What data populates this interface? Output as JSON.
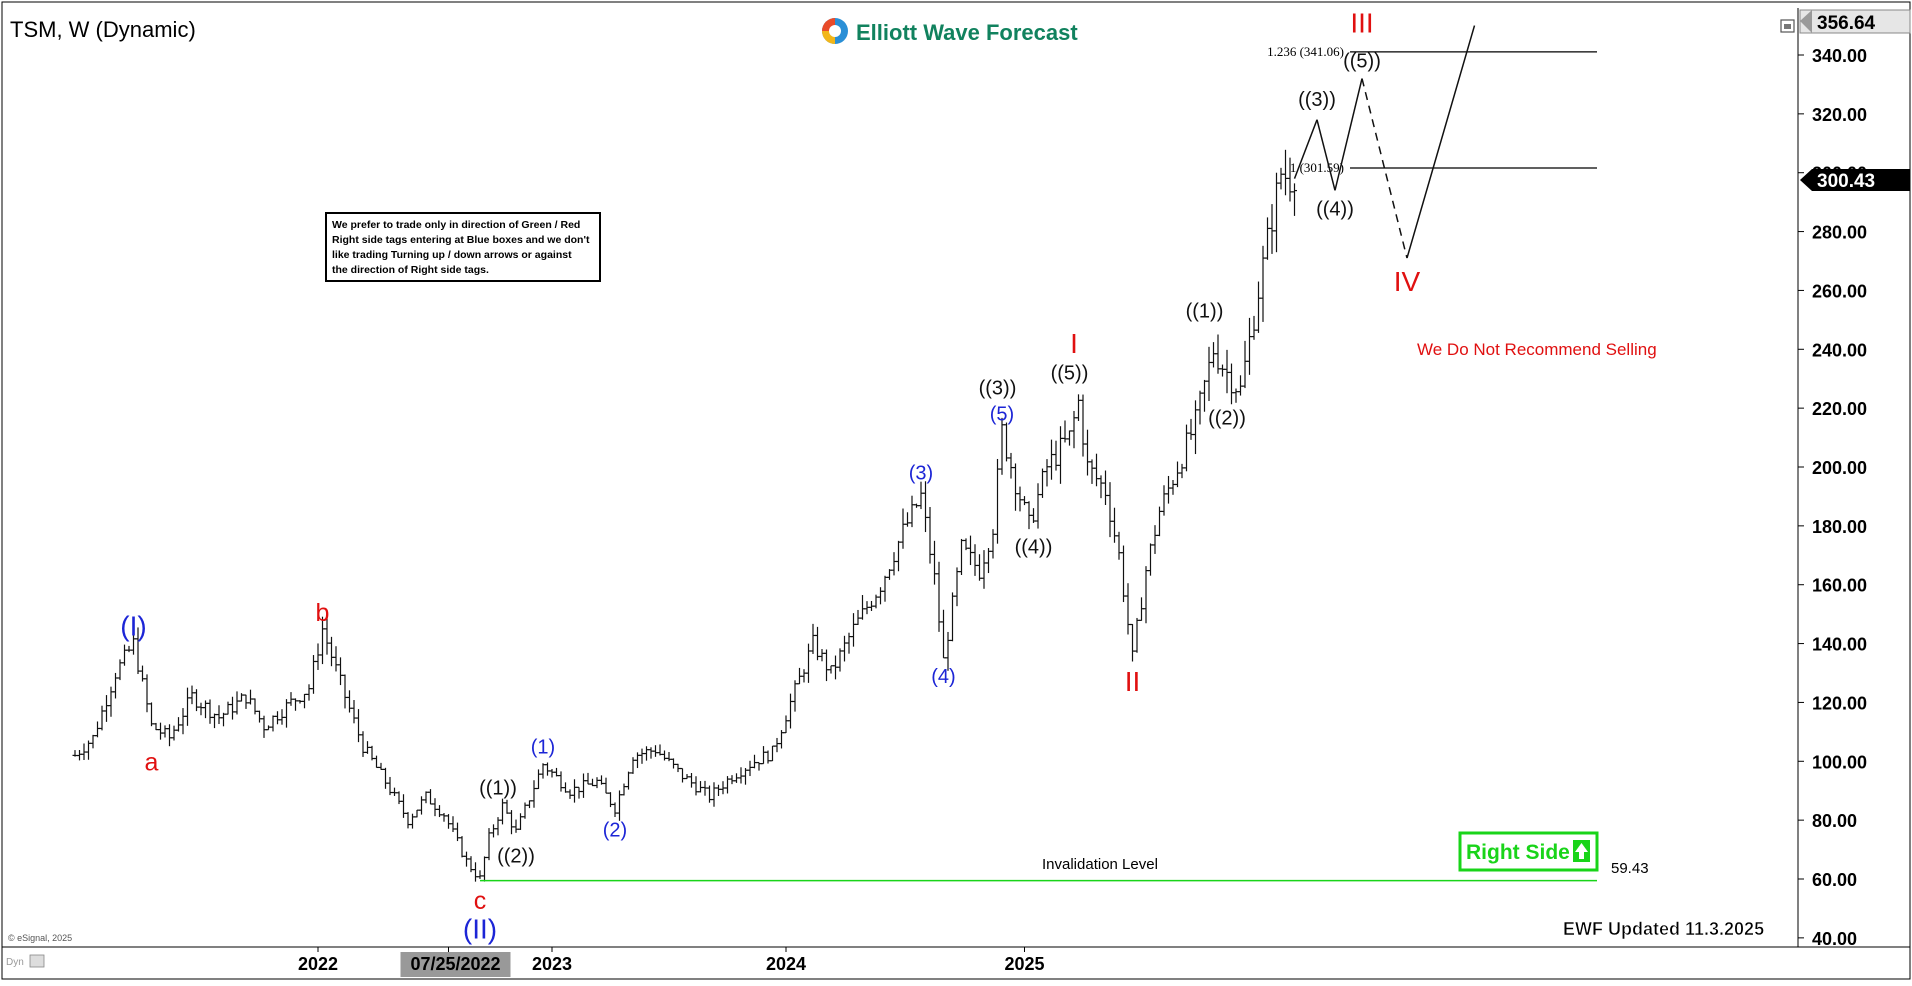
{
  "header": {
    "symbol_title": "TSM, W (Dynamic)",
    "brand": "Elliott Wave Forecast",
    "updated": "EWF Updated 11.3.2025",
    "copyright": "© eSignal, 2025",
    "corner_tag": "Dyn"
  },
  "note_box": [
    "We prefer to trade only in direction of Green / Red",
    "Right side tags entering at Blue boxes and we don't",
    "like trading Turning up / down arrows or against",
    "the direction of Right side tags."
  ],
  "right_side_tag": "Right Side",
  "recommendation": "We Do Not Recommend Selling",
  "invalidation": {
    "label": "Invalidation Level",
    "value": "59.43"
  },
  "price_box": {
    "high": "356.64",
    "last": "300.43"
  },
  "fib_levels": [
    {
      "label": "1.236 (341.06)",
      "price": 341.06
    },
    {
      "label": "1 (301.59)",
      "price": 301.59
    }
  ],
  "x_axis": {
    "ticks": [
      {
        "label": "2022",
        "week": 0
      },
      {
        "label": "07/25/2022",
        "week": 29,
        "highlight": true
      },
      {
        "label": "2023",
        "week": 52
      },
      {
        "label": "2024",
        "week": 104
      },
      {
        "label": "2025",
        "week": 157
      }
    ]
  },
  "colors": {
    "wave_red": "#e01010",
    "wave_blue": "#1c25d6",
    "wave_black": "#111111",
    "invalidation_green": "#19d419",
    "right_side_green": "#19d419",
    "last_price_box": "#000000"
  },
  "chart_data": {
    "type": "bar",
    "title": "TSM, W (Dynamic)",
    "xlabel": "",
    "ylabel": "",
    "ylim": [
      36,
      358
    ],
    "y_ticks": [
      40,
      60,
      80,
      100,
      120,
      140,
      160,
      180,
      200,
      220,
      240,
      260,
      280,
      300,
      320,
      340
    ],
    "y_tick_labels": [
      "40.00",
      "60.00",
      "80.00",
      "100.00",
      "120.00",
      "140.00",
      "160.00",
      "180.00",
      "200.00",
      "220.00",
      "240.00",
      "260.00",
      "280.00",
      "300.00",
      "320.00",
      "340.00"
    ],
    "grid": false,
    "series": [
      {
        "type": "ohlc",
        "points": [
          {
            "week": -54,
            "price": 102
          },
          {
            "week": -50,
            "price": 108
          },
          {
            "week": -45,
            "price": 130
          },
          {
            "week": -41,
            "price": 140
          },
          {
            "week": -37,
            "price": 112
          },
          {
            "week": -33,
            "price": 108
          },
          {
            "week": -28,
            "price": 122
          },
          {
            "week": -22,
            "price": 115
          },
          {
            "week": -16,
            "price": 122
          },
          {
            "week": -12,
            "price": 112
          },
          {
            "week": -6,
            "price": 120
          },
          {
            "week": -2,
            "price": 125
          },
          {
            "week": 1,
            "price": 145
          },
          {
            "week": 6,
            "price": 122
          },
          {
            "week": 10,
            "price": 105
          },
          {
            "week": 15,
            "price": 93
          },
          {
            "week": 20,
            "price": 80
          },
          {
            "week": 24,
            "price": 88
          },
          {
            "week": 28,
            "price": 82
          },
          {
            "week": 33,
            "price": 66
          },
          {
            "week": 36,
            "price": 60
          },
          {
            "week": 38,
            "price": 74
          },
          {
            "week": 41,
            "price": 85
          },
          {
            "week": 44,
            "price": 76
          },
          {
            "week": 50,
            "price": 99
          },
          {
            "week": 56,
            "price": 90
          },
          {
            "week": 62,
            "price": 93
          },
          {
            "week": 66,
            "price": 84
          },
          {
            "week": 70,
            "price": 102
          },
          {
            "week": 75,
            "price": 104
          },
          {
            "week": 81,
            "price": 95
          },
          {
            "week": 87,
            "price": 88
          },
          {
            "week": 92,
            "price": 95
          },
          {
            "week": 97,
            "price": 100
          },
          {
            "week": 101,
            "price": 103
          },
          {
            "week": 105,
            "price": 120
          },
          {
            "week": 110,
            "price": 140
          },
          {
            "week": 114,
            "price": 130
          },
          {
            "week": 119,
            "price": 145
          },
          {
            "week": 125,
            "price": 160
          },
          {
            "week": 130,
            "price": 178
          },
          {
            "week": 134,
            "price": 190
          },
          {
            "week": 137,
            "price": 162
          },
          {
            "week": 139,
            "price": 134
          },
          {
            "week": 143,
            "price": 172
          },
          {
            "week": 147,
            "price": 165
          },
          {
            "week": 150,
            "price": 180
          },
          {
            "week": 152,
            "price": 212
          },
          {
            "week": 155,
            "price": 195
          },
          {
            "week": 158,
            "price": 180
          },
          {
            "week": 162,
            "price": 200
          },
          {
            "week": 167,
            "price": 210
          },
          {
            "week": 169,
            "price": 222
          },
          {
            "week": 171,
            "price": 200
          },
          {
            "week": 175,
            "price": 192
          },
          {
            "week": 178,
            "price": 170
          },
          {
            "week": 181,
            "price": 135
          },
          {
            "week": 184,
            "price": 165
          },
          {
            "week": 187,
            "price": 185
          },
          {
            "week": 191,
            "price": 200
          },
          {
            "week": 195,
            "price": 215
          },
          {
            "week": 199,
            "price": 240
          },
          {
            "week": 202,
            "price": 232
          },
          {
            "week": 205,
            "price": 226
          },
          {
            "week": 209,
            "price": 260
          },
          {
            "week": 212,
            "price": 285
          },
          {
            "week": 214,
            "price": 300
          },
          {
            "week": 216,
            "price": 298
          },
          {
            "week": 217,
            "price": 300
          }
        ]
      },
      {
        "name": "projection",
        "points": [
          {
            "week": 217,
            "price": 298
          },
          {
            "week": 222,
            "price": 318
          },
          {
            "week": 226,
            "price": 294
          },
          {
            "week": 232,
            "price": 332
          },
          {
            "week": 242,
            "price": 271
          },
          {
            "week": 257,
            "price": 350
          }
        ]
      }
    ],
    "annotations": [
      {
        "text": "(I)",
        "week": -41,
        "price": 140,
        "color": "blue",
        "position": "above"
      },
      {
        "text": "a",
        "week": -37,
        "price": 106,
        "color": "red",
        "position": "below"
      },
      {
        "text": "b",
        "week": 1,
        "price": 145,
        "color": "red",
        "position": "above"
      },
      {
        "text": "c",
        "week": 36,
        "price": 59,
        "color": "red",
        "position": "below"
      },
      {
        "text": "(II)",
        "week": 36,
        "price": 50,
        "color": "blue",
        "position": "below"
      },
      {
        "text": "((1))",
        "week": 40,
        "price": 86,
        "color": "black",
        "position": "above"
      },
      {
        "text": "((2))",
        "week": 44,
        "price": 73,
        "color": "black",
        "position": "below"
      },
      {
        "text": "(1)",
        "week": 50,
        "price": 100,
        "color": "blue",
        "position": "above"
      },
      {
        "text": "(2)",
        "week": 66,
        "price": 82,
        "color": "blue",
        "position": "below"
      },
      {
        "text": "(3)",
        "week": 134,
        "price": 193,
        "color": "blue",
        "position": "above"
      },
      {
        "text": "(4)",
        "week": 139,
        "price": 134,
        "color": "blue",
        "position": "below"
      },
      {
        "text": "(5)",
        "week": 152,
        "price": 213,
        "color": "blue",
        "position": "above"
      },
      {
        "text": "((3))",
        "week": 151,
        "price": 222,
        "color": "black",
        "position": "above"
      },
      {
        "text": "((4))",
        "week": 159,
        "price": 178,
        "color": "black",
        "position": "below"
      },
      {
        "text": "((5))",
        "week": 167,
        "price": 227,
        "color": "black",
        "position": "above"
      },
      {
        "text": "I",
        "week": 168,
        "price": 236,
        "color": "red",
        "position": "above"
      },
      {
        "text": "II",
        "week": 181,
        "price": 134,
        "color": "red",
        "position": "below"
      },
      {
        "text": "((1))",
        "week": 197,
        "price": 248,
        "color": "black",
        "position": "above"
      },
      {
        "text": "((2))",
        "week": 202,
        "price": 222,
        "color": "black",
        "position": "below"
      },
      {
        "text": "((3))",
        "week": 222,
        "price": 320,
        "color": "black",
        "position": "above"
      },
      {
        "text": "((4))",
        "week": 226,
        "price": 293,
        "color": "black",
        "position": "below"
      },
      {
        "text": "((5))",
        "week": 232,
        "price": 333,
        "color": "black",
        "position": "above"
      },
      {
        "text": "III",
        "week": 232,
        "price": 345,
        "color": "red",
        "position": "above"
      },
      {
        "text": "IV",
        "week": 242,
        "price": 270,
        "color": "red",
        "position": "below"
      }
    ]
  }
}
